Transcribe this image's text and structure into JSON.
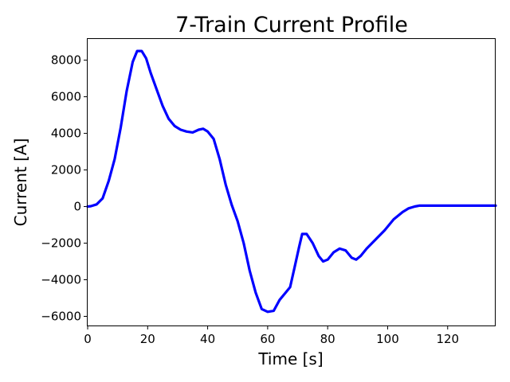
{
  "chart_data": {
    "type": "line",
    "title": "7-Train Current Profile",
    "xlabel": "Time [s]",
    "ylabel": "Current [A]",
    "xlim": [
      0,
      136
    ],
    "ylim": [
      -6500,
      9200
    ],
    "xticks": [
      0,
      20,
      40,
      60,
      80,
      100,
      120
    ],
    "yticks": [
      -6000,
      -4000,
      -2000,
      0,
      2000,
      4000,
      6000,
      8000
    ],
    "grid": false,
    "series": [
      {
        "color": "#0000ff",
        "x": [
          0,
          1,
          3,
          5,
          7,
          9,
          11,
          13,
          15,
          16.5,
          18,
          19.5,
          21,
          23,
          25,
          27,
          29,
          31,
          33,
          35,
          37,
          38.5,
          40,
          42,
          44,
          46,
          48,
          50,
          52,
          54,
          56,
          58,
          60,
          62,
          64,
          66,
          67.5,
          69,
          70.5,
          71.5,
          73,
          75,
          77,
          78.5,
          80,
          82,
          84,
          86,
          88,
          89.5,
          91,
          93,
          96,
          99,
          102,
          105,
          107,
          109,
          110.5,
          112,
          115,
          120,
          125,
          130,
          136
        ],
        "y": [
          0,
          20,
          120,
          450,
          1400,
          2600,
          4300,
          6300,
          7900,
          8500,
          8500,
          8100,
          7300,
          6400,
          5500,
          4800,
          4400,
          4200,
          4100,
          4050,
          4200,
          4250,
          4100,
          3700,
          2600,
          1200,
          100,
          -800,
          -2000,
          -3500,
          -4700,
          -5600,
          -5750,
          -5700,
          -5100,
          -4700,
          -4400,
          -3300,
          -2200,
          -1500,
          -1500,
          -2000,
          -2700,
          -3000,
          -2900,
          -2500,
          -2300,
          -2400,
          -2800,
          -2900,
          -2700,
          -2300,
          -1800,
          -1300,
          -700,
          -300,
          -100,
          0,
          50,
          50,
          50,
          50,
          50,
          50,
          50
        ]
      }
    ]
  }
}
